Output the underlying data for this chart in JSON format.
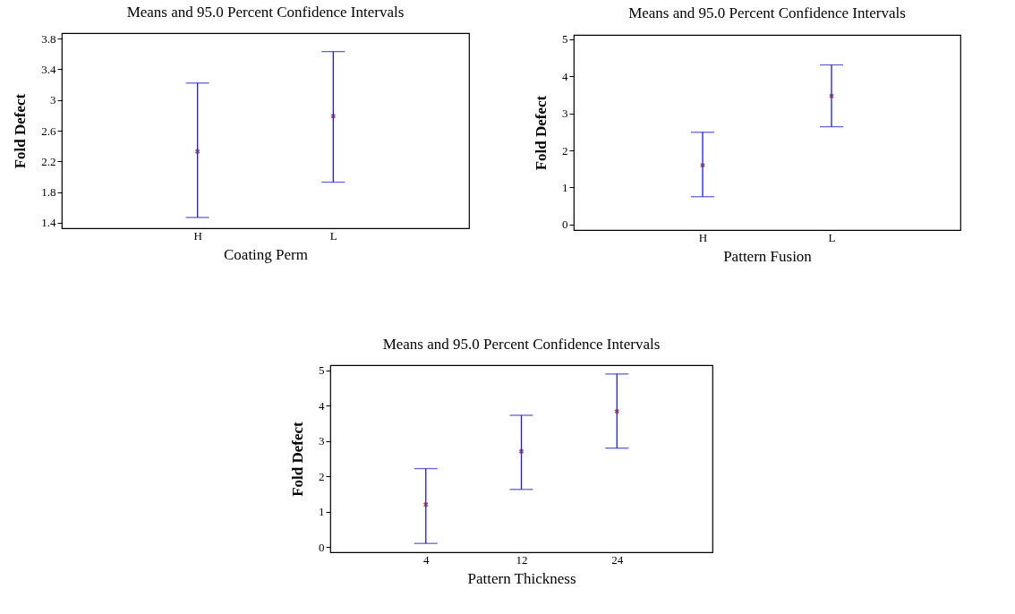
{
  "chart_data": [
    {
      "type": "scatter",
      "title": "Means and 95.0 Percent Confidence Intervals",
      "xlabel": "Coating Perm",
      "ylabel": "Fold Defect",
      "categories": [
        "H",
        "L"
      ],
      "marker": "cross",
      "grid": false,
      "ylim": [
        1.33,
        3.87
      ],
      "yticks": [
        1.4,
        1.8,
        2.2,
        2.6,
        3,
        3.4,
        3.8
      ],
      "series": [
        {
          "color": "#7a1a5a",
          "values": [
            2.33,
            2.79
          ],
          "errors": [
            [
              1.47,
              3.22
            ],
            [
              1.93,
              3.63
            ]
          ]
        }
      ]
    },
    {
      "type": "scatter",
      "title": "Means and 95.0 Percent Confidence Intervals",
      "xlabel": "Pattern Fusion",
      "ylabel": "Fold Defect",
      "categories": [
        "H",
        "L"
      ],
      "marker": "cross",
      "grid": false,
      "ylim": [
        -0.15,
        5.12
      ],
      "yticks": [
        0,
        1,
        2,
        3,
        4,
        5
      ],
      "series": [
        {
          "color": "#7a1a5a",
          "values": [
            1.6,
            3.47
          ],
          "errors": [
            [
              0.75,
              2.49
            ],
            [
              2.64,
              4.31
            ]
          ]
        }
      ]
    },
    {
      "type": "scatter",
      "title": "Means and 95.0 Percent Confidence Intervals",
      "xlabel": "Pattern Thickness",
      "ylabel": "Fold Defect",
      "categories": [
        "4",
        "12",
        "24"
      ],
      "marker": "cross",
      "grid": false,
      "ylim": [
        -0.15,
        5.15
      ],
      "yticks": [
        0,
        1,
        2,
        3,
        4,
        5
      ],
      "series": [
        {
          "color": "#7a1a5a",
          "values": [
            1.2,
            2.71,
            3.84
          ],
          "errors": [
            [
              0.1,
              2.22
            ],
            [
              1.63,
              3.73
            ],
            [
              2.8,
              4.9
            ]
          ]
        }
      ]
    }
  ]
}
